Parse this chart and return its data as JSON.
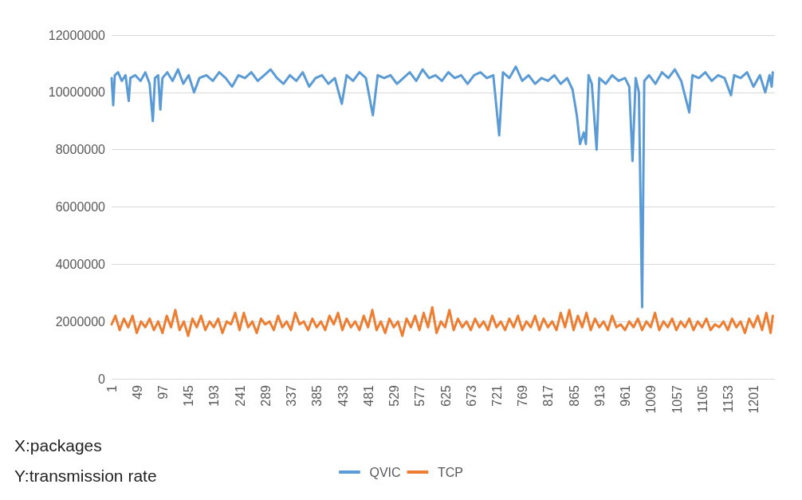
{
  "chart_data": {
    "type": "line",
    "annotations": [
      "X:packages",
      "Y:transmission rate"
    ],
    "xlim": [
      1,
      1240
    ],
    "xticks": [
      1,
      49,
      97,
      145,
      193,
      241,
      289,
      337,
      385,
      433,
      481,
      529,
      577,
      625,
      673,
      721,
      769,
      817,
      865,
      913,
      961,
      1009,
      1057,
      1105,
      1153,
      1201
    ],
    "ylim": [
      0,
      12000000
    ],
    "yticks": [
      0,
      2000000,
      4000000,
      6000000,
      8000000,
      10000000,
      12000000
    ],
    "grid": "y",
    "legend": "bottom",
    "marker": "none",
    "line_style": "solid",
    "series": [
      {
        "name": "QVIC",
        "color": "#5b9bd5",
        "x": [
          1,
          4,
          7,
          13,
          20,
          27,
          33,
          36,
          45,
          55,
          64,
          72,
          78,
          82,
          88,
          92,
          96,
          105,
          115,
          125,
          135,
          145,
          155,
          165,
          178,
          190,
          202,
          214,
          226,
          238,
          250,
          262,
          274,
          286,
          298,
          310,
          322,
          334,
          346,
          358,
          370,
          382,
          394,
          406,
          418,
          431,
          440,
          452,
          464,
          476,
          489,
          498,
          510,
          522,
          534,
          546,
          558,
          570,
          582,
          594,
          606,
          618,
          630,
          642,
          654,
          666,
          678,
          690,
          702,
          714,
          725,
          732,
          744,
          756,
          768,
          780,
          792,
          804,
          816,
          828,
          840,
          852,
          862,
          870,
          876,
          883,
          887,
          892,
          898,
          907,
          912,
          924,
          936,
          948,
          960,
          968,
          974,
          980,
          986,
          992,
          996,
          1005,
          1017,
          1029,
          1041,
          1053,
          1065,
          1080,
          1086,
          1098,
          1110,
          1122,
          1134,
          1146,
          1158,
          1164,
          1176,
          1188,
          1200,
          1212,
          1222,
          1230,
          1234,
          1236
        ],
        "values": [
          10500000,
          9550000,
          10600000,
          10700000,
          10400000,
          10600000,
          9700000,
          10500000,
          10600000,
          10400000,
          10700000,
          10300000,
          9000000,
          10500000,
          10600000,
          9400000,
          10500000,
          10700000,
          10400000,
          10800000,
          10300000,
          10600000,
          10000000,
          10500000,
          10600000,
          10400000,
          10700000,
          10500000,
          10200000,
          10600000,
          10500000,
          10700000,
          10400000,
          10600000,
          10800000,
          10500000,
          10300000,
          10600000,
          10400000,
          10700000,
          10200000,
          10500000,
          10600000,
          10300000,
          10500000,
          9600000,
          10600000,
          10400000,
          10700000,
          10500000,
          9200000,
          10600000,
          10500000,
          10600000,
          10300000,
          10500000,
          10700000,
          10400000,
          10800000,
          10500000,
          10600000,
          10400000,
          10700000,
          10500000,
          10600000,
          10300000,
          10600000,
          10700000,
          10500000,
          10600000,
          8500000,
          10700000,
          10500000,
          10900000,
          10400000,
          10600000,
          10300000,
          10500000,
          10400000,
          10600000,
          10300000,
          10500000,
          10100000,
          9200000,
          8200000,
          8600000,
          8200000,
          10600000,
          10300000,
          8000000,
          10500000,
          10300000,
          10600000,
          10400000,
          10500000,
          10200000,
          7600000,
          10500000,
          10000000,
          2500000,
          10400000,
          10600000,
          10300000,
          10700000,
          10500000,
          10800000,
          10400000,
          9300000,
          10600000,
          10500000,
          10700000,
          10400000,
          10600000,
          10500000,
          9900000,
          10600000,
          10500000,
          10700000,
          10200000,
          10600000,
          10000000,
          10600000,
          10200000,
          10700000
        ]
      },
      {
        "name": "TCP",
        "color": "#ed7d31",
        "x": [
          1,
          8,
          16,
          24,
          32,
          40,
          48,
          56,
          64,
          72,
          80,
          88,
          96,
          104,
          112,
          120,
          128,
          136,
          144,
          152,
          160,
          168,
          176,
          184,
          192,
          200,
          208,
          216,
          224,
          232,
          240,
          248,
          256,
          264,
          272,
          280,
          288,
          296,
          304,
          312,
          320,
          328,
          336,
          344,
          352,
          360,
          368,
          376,
          384,
          392,
          400,
          408,
          416,
          424,
          432,
          440,
          448,
          456,
          464,
          472,
          480,
          488,
          496,
          504,
          512,
          520,
          528,
          536,
          544,
          552,
          560,
          568,
          576,
          584,
          592,
          600,
          608,
          616,
          624,
          632,
          640,
          648,
          656,
          664,
          672,
          680,
          688,
          696,
          704,
          712,
          720,
          728,
          736,
          744,
          752,
          760,
          768,
          776,
          784,
          792,
          800,
          808,
          816,
          824,
          832,
          840,
          848,
          856,
          864,
          872,
          880,
          888,
          896,
          904,
          912,
          920,
          928,
          936,
          944,
          952,
          960,
          968,
          976,
          984,
          992,
          1000,
          1008,
          1016,
          1024,
          1032,
          1040,
          1048,
          1056,
          1064,
          1072,
          1080,
          1088,
          1096,
          1104,
          1112,
          1120,
          1128,
          1136,
          1144,
          1152,
          1160,
          1168,
          1176,
          1184,
          1192,
          1200,
          1208,
          1216,
          1224,
          1232,
          1236
        ],
        "values": [
          1900000,
          2200000,
          1700000,
          2100000,
          1800000,
          2200000,
          1600000,
          2000000,
          1800000,
          2100000,
          1700000,
          2000000,
          1600000,
          2200000,
          1800000,
          2400000,
          1700000,
          2000000,
          1500000,
          2100000,
          1800000,
          2200000,
          1700000,
          2000000,
          1800000,
          2100000,
          1600000,
          2000000,
          1900000,
          2300000,
          1700000,
          2300000,
          1800000,
          2000000,
          1600000,
          2100000,
          1900000,
          2000000,
          1700000,
          2200000,
          1800000,
          2000000,
          1700000,
          2300000,
          1900000,
          2000000,
          1700000,
          2100000,
          1800000,
          2000000,
          1700000,
          2200000,
          1900000,
          2300000,
          1700000,
          2100000,
          1800000,
          2000000,
          1700000,
          2200000,
          1800000,
          2400000,
          1700000,
          2000000,
          1600000,
          2100000,
          1800000,
          2000000,
          1500000,
          2100000,
          1800000,
          2200000,
          1700000,
          2300000,
          1800000,
          2500000,
          1600000,
          2000000,
          1800000,
          2400000,
          1700000,
          2100000,
          1800000,
          2000000,
          1700000,
          2100000,
          1800000,
          2000000,
          1700000,
          2200000,
          1800000,
          2000000,
          1700000,
          2100000,
          1800000,
          2200000,
          1700000,
          2000000,
          1800000,
          2200000,
          1700000,
          2100000,
          1800000,
          2000000,
          1700000,
          2300000,
          1800000,
          2400000,
          1700000,
          2200000,
          1800000,
          2300000,
          1700000,
          2100000,
          1800000,
          2000000,
          1700000,
          2200000,
          1800000,
          1900000,
          1700000,
          2000000,
          1800000,
          2100000,
          1700000,
          2000000,
          1800000,
          2300000,
          1700000,
          2000000,
          1800000,
          2100000,
          1700000,
          2000000,
          1800000,
          2100000,
          1700000,
          2000000,
          1800000,
          2100000,
          1700000,
          1900000,
          1800000,
          2000000,
          1700000,
          2100000,
          1800000,
          2000000,
          1600000,
          2100000,
          1800000,
          2200000,
          1700000,
          2300000,
          1600000,
          2200000
        ]
      }
    ]
  }
}
